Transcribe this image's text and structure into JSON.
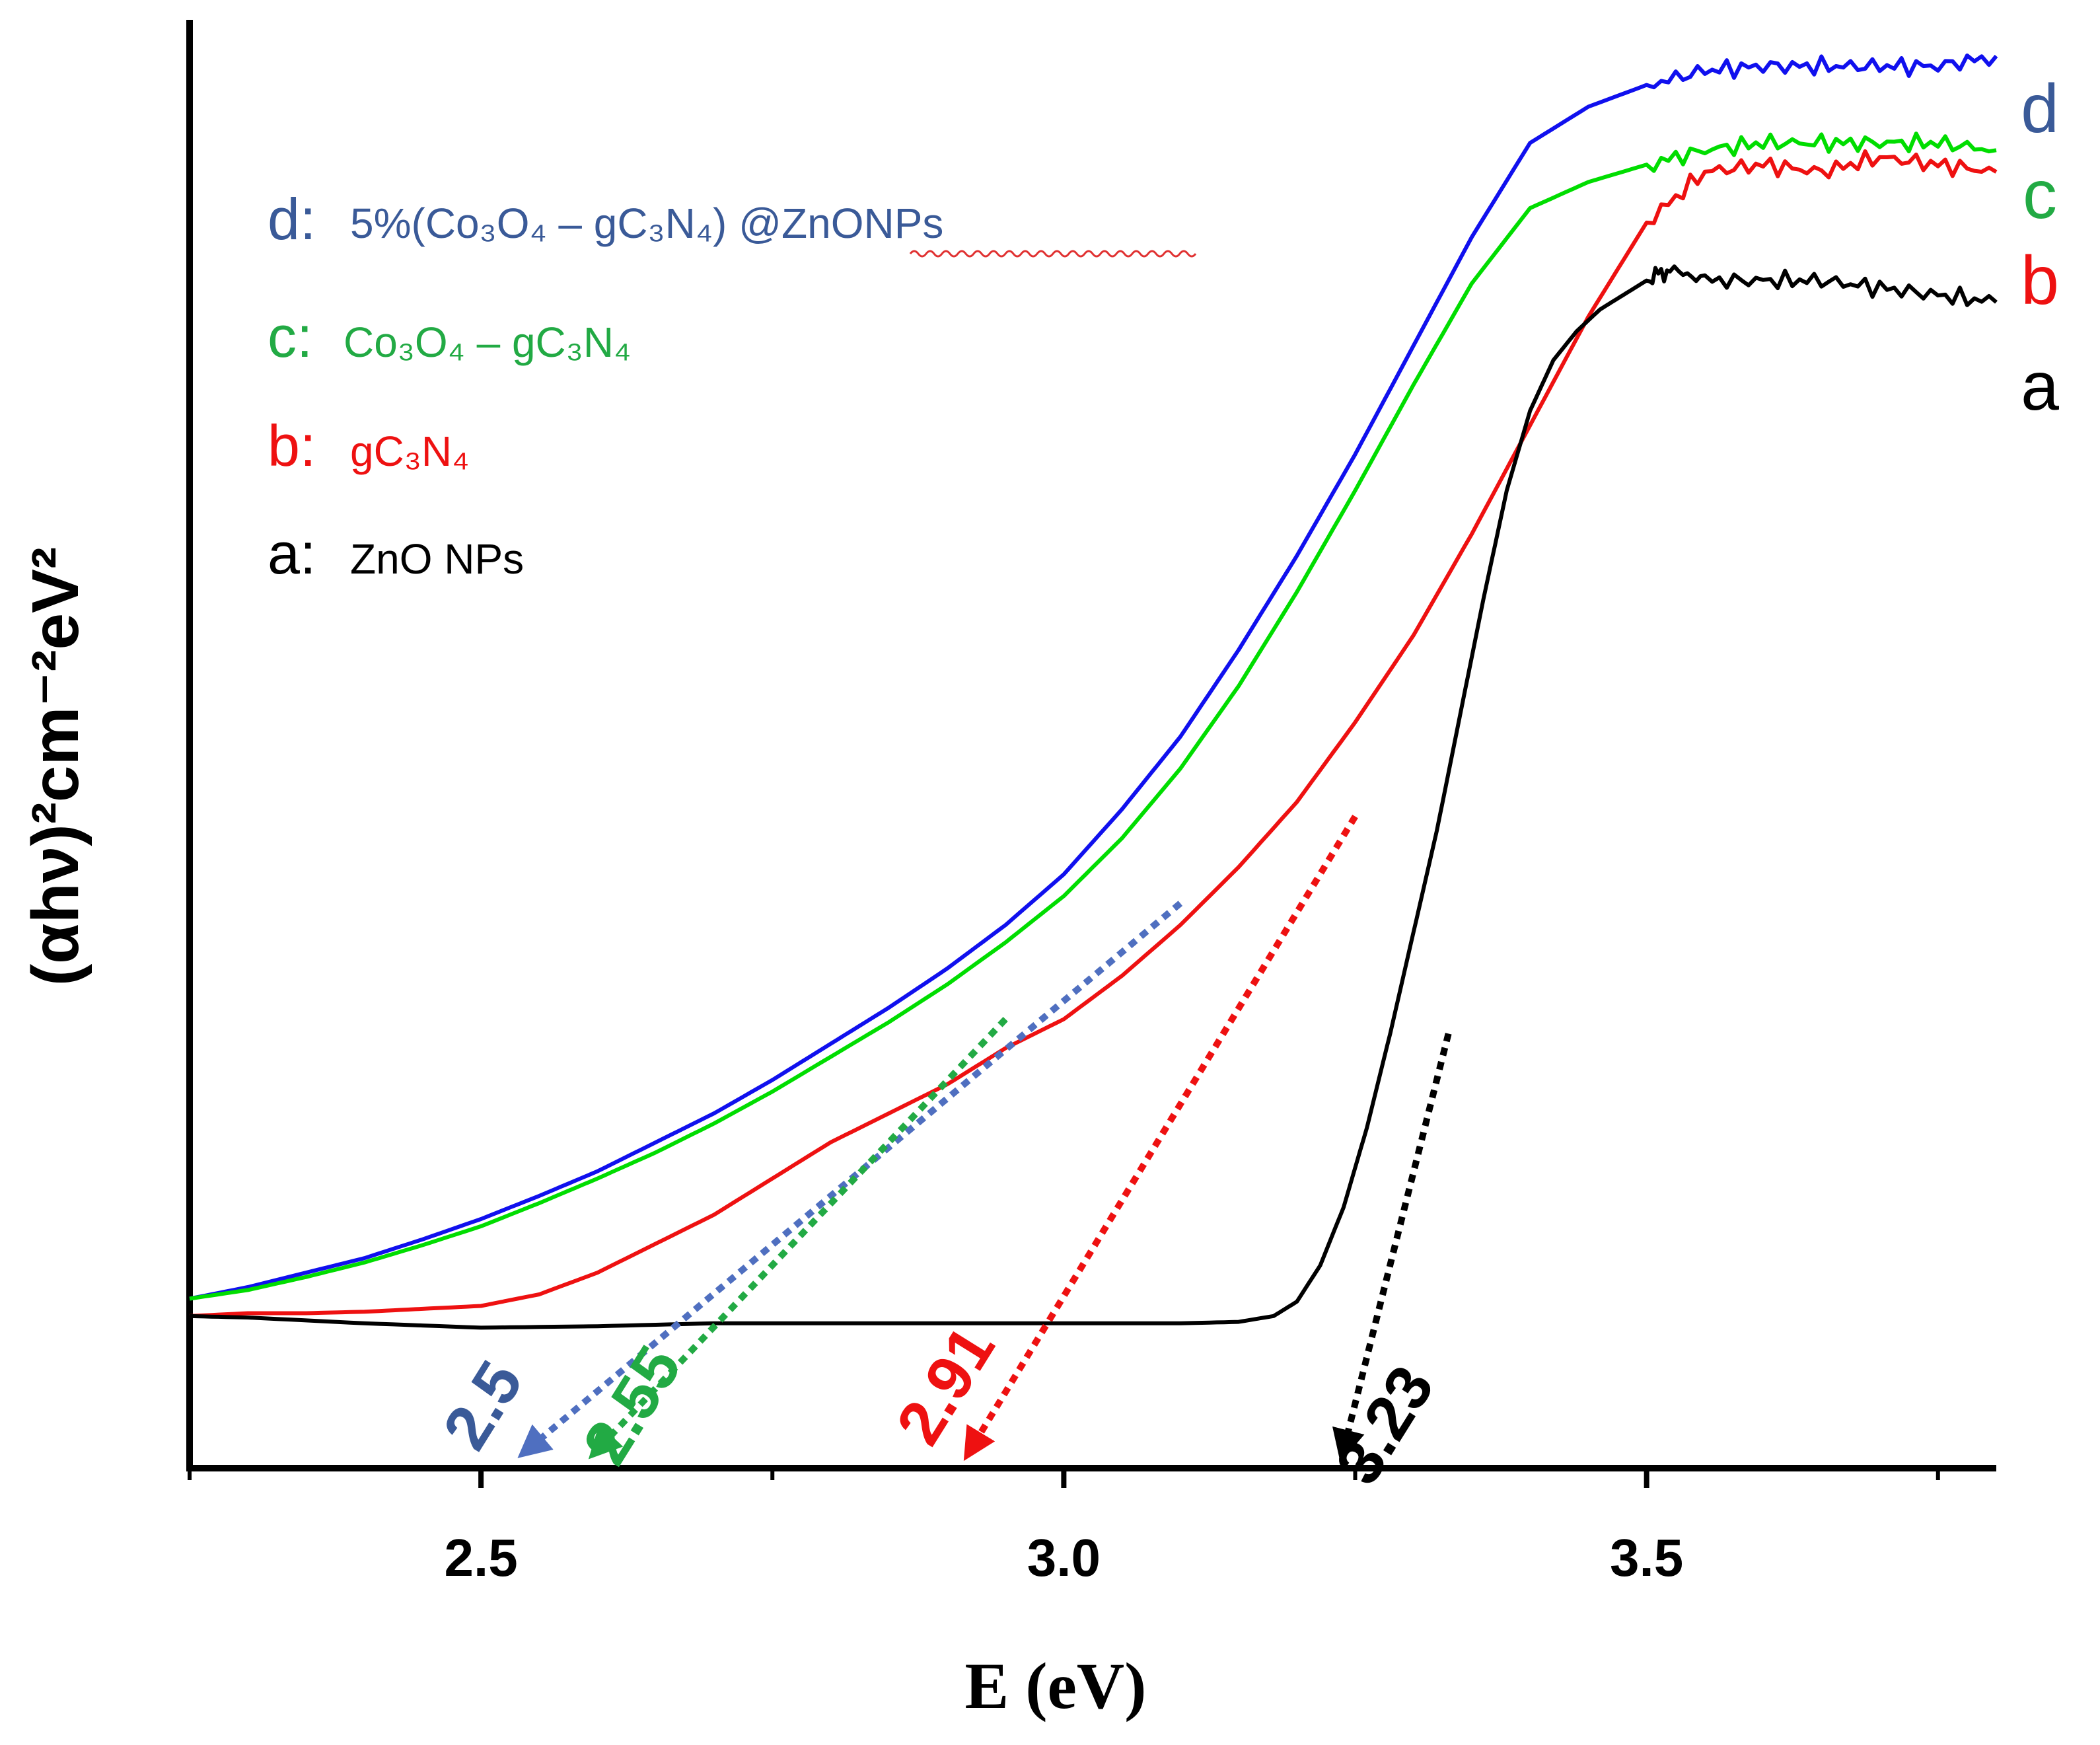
{
  "chart_data": {
    "type": "line",
    "title": "",
    "xlabel": "E (eV)",
    "ylabel": "(αhν)²cm⁻²eV²",
    "xlim": [
      2.25,
      3.8
    ],
    "ylim": [
      0,
      1.0
    ],
    "xticks": [
      2.5,
      3.0,
      3.5
    ],
    "xtick_labels": [
      "2.5",
      "3.0",
      "3.5"
    ],
    "grid": false,
    "yticks_shown": false,
    "series": [
      {
        "key": "d",
        "letter": "d",
        "legend_text": "5%(Co₃O₄ – gC₃N₄) @ZnONPs",
        "color": "#1010ee",
        "label_color": "#3a5a98",
        "x": [
          2.25,
          2.3,
          2.35,
          2.4,
          2.45,
          2.5,
          2.55,
          2.6,
          2.65,
          2.7,
          2.75,
          2.8,
          2.85,
          2.9,
          2.95,
          3.0,
          3.05,
          3.1,
          3.15,
          3.2,
          3.25,
          3.3,
          3.35,
          3.4,
          3.45,
          3.5,
          3.55,
          3.6,
          3.65,
          3.7,
          3.75,
          3.8
        ],
        "y": [
          0.117,
          0.125,
          0.135,
          0.145,
          0.158,
          0.172,
          0.188,
          0.205,
          0.225,
          0.245,
          0.268,
          0.293,
          0.318,
          0.345,
          0.375,
          0.41,
          0.455,
          0.505,
          0.565,
          0.63,
          0.7,
          0.775,
          0.85,
          0.915,
          0.94,
          0.955,
          0.965,
          0.968,
          0.968,
          0.968,
          0.968,
          0.975
        ]
      },
      {
        "key": "c",
        "letter": "c",
        "legend_text": "Co₃O₄ – gC₃N₄",
        "color": "#00dd00",
        "label_color": "#22aa44",
        "x": [
          2.25,
          2.3,
          2.35,
          2.4,
          2.45,
          2.5,
          2.55,
          2.6,
          2.65,
          2.7,
          2.75,
          2.8,
          2.85,
          2.9,
          2.95,
          3.0,
          3.05,
          3.1,
          3.15,
          3.2,
          3.25,
          3.3,
          3.35,
          3.4,
          3.45,
          3.5,
          3.55,
          3.6,
          3.65,
          3.7,
          3.75,
          3.8
        ],
        "y": [
          0.117,
          0.123,
          0.132,
          0.142,
          0.154,
          0.167,
          0.183,
          0.2,
          0.218,
          0.238,
          0.26,
          0.284,
          0.308,
          0.334,
          0.363,
          0.395,
          0.435,
          0.483,
          0.54,
          0.605,
          0.675,
          0.748,
          0.818,
          0.87,
          0.888,
          0.9,
          0.91,
          0.915,
          0.915,
          0.915,
          0.915,
          0.91
        ]
      },
      {
        "key": "b",
        "letter": "b",
        "legend_text": "gC₃N₄",
        "color": "#ee1111",
        "label_color": "#ee1111",
        "x": [
          2.25,
          2.3,
          2.35,
          2.4,
          2.45,
          2.5,
          2.55,
          2.6,
          2.65,
          2.7,
          2.75,
          2.8,
          2.85,
          2.9,
          2.95,
          3.0,
          3.05,
          3.1,
          3.15,
          3.2,
          3.25,
          3.3,
          3.35,
          3.4,
          3.45,
          3.5,
          3.55,
          3.6,
          3.65,
          3.7,
          3.75,
          3.8
        ],
        "y": [
          0.105,
          0.107,
          0.107,
          0.108,
          0.11,
          0.112,
          0.12,
          0.135,
          0.155,
          0.175,
          0.2,
          0.225,
          0.245,
          0.265,
          0.29,
          0.31,
          0.34,
          0.375,
          0.415,
          0.46,
          0.515,
          0.575,
          0.645,
          0.72,
          0.795,
          0.86,
          0.895,
          0.9,
          0.895,
          0.905,
          0.9,
          0.895
        ]
      },
      {
        "key": "a",
        "letter": "a",
        "legend_text": "ZnO NPs",
        "color": "#000000",
        "label_color": "#000000",
        "x": [
          2.25,
          2.3,
          2.4,
          2.5,
          2.6,
          2.7,
          2.8,
          2.9,
          3.0,
          3.1,
          3.15,
          3.18,
          3.2,
          3.22,
          3.24,
          3.26,
          3.28,
          3.3,
          3.32,
          3.34,
          3.36,
          3.38,
          3.4,
          3.42,
          3.44,
          3.46,
          3.48,
          3.5,
          3.52,
          3.55,
          3.6,
          3.65,
          3.7,
          3.75,
          3.8
        ],
        "y": [
          0.105,
          0.104,
          0.1,
          0.097,
          0.098,
          0.1,
          0.1,
          0.1,
          0.1,
          0.1,
          0.101,
          0.105,
          0.115,
          0.14,
          0.18,
          0.235,
          0.3,
          0.37,
          0.44,
          0.52,
          0.6,
          0.675,
          0.73,
          0.765,
          0.785,
          0.8,
          0.81,
          0.82,
          0.828,
          0.82,
          0.82,
          0.82,
          0.815,
          0.81,
          0.805
        ]
      }
    ],
    "annotations": [
      {
        "series": "d",
        "label": "2.5",
        "color": "#4f6fc0",
        "label_color": "#3a5a98",
        "from": [
          3.1,
          0.39
        ],
        "to": [
          2.54,
          0.0
        ]
      },
      {
        "series": "c",
        "label": "2.55",
        "color": "#22aa44",
        "label_color": "#22aa44",
        "from": [
          2.95,
          0.31
        ],
        "to": [
          2.6,
          0.0
        ]
      },
      {
        "series": "b",
        "label": "2.91",
        "color": "#ee1111",
        "label_color": "#ee1111",
        "from": [
          3.25,
          0.45
        ],
        "to": [
          2.92,
          0.0
        ]
      },
      {
        "series": "a",
        "label": "3.23",
        "color": "#000000",
        "label_color": "#000000",
        "from": [
          3.33,
          0.3
        ],
        "to": [
          3.24,
          0.0
        ]
      }
    ]
  }
}
